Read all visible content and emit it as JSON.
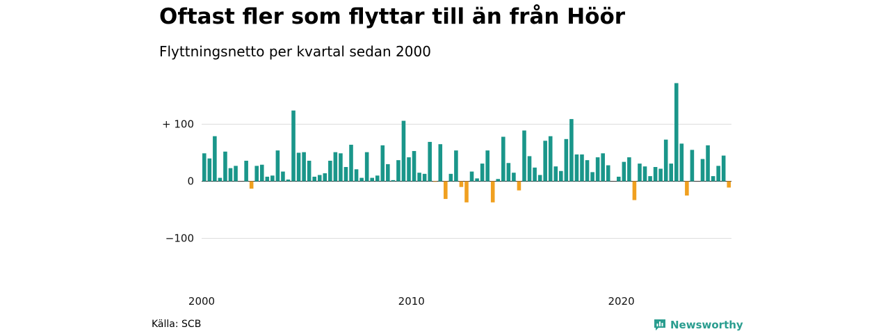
{
  "title": "Oftast fler som flyttar till än från Höör",
  "subtitle": "Flyttningsnetto per kvartal sedan 2000",
  "source": "Källa: SCB",
  "brand": {
    "name": "Newsworthy",
    "logo_icon": "newsworthy-logo-icon"
  },
  "colors": {
    "positive": "#1a968a",
    "negative": "#f0a020",
    "grid": "#dddddd",
    "brand": "#2a9d8f"
  },
  "chart_data": {
    "type": "bar",
    "ylim": [
      -140,
      170
    ],
    "y_ticks": [
      {
        "value": 100,
        "label": "+ 100"
      },
      {
        "value": 0,
        "label": "0"
      },
      {
        "value": -100,
        "label": "−100"
      }
    ],
    "x_ticks": [
      "2000",
      "2010",
      "2020"
    ],
    "grid": true,
    "first_quarter": "2000 Q1",
    "values": [
      49,
      40,
      79,
      6,
      52,
      23,
      27,
      0,
      36,
      -13,
      27,
      29,
      8,
      10,
      54,
      17,
      3,
      124,
      50,
      51,
      36,
      8,
      11,
      14,
      36,
      51,
      49,
      25,
      64,
      21,
      6,
      51,
      6,
      10,
      63,
      30,
      2,
      37,
      106,
      42,
      53,
      15,
      13,
      69,
      -1,
      65,
      -31,
      13,
      54,
      -10,
      -37,
      17,
      5,
      31,
      54,
      -37,
      4,
      78,
      32,
      15,
      -16,
      89,
      44,
      24,
      11,
      71,
      79,
      26,
      18,
      74,
      109,
      47,
      47,
      37,
      16,
      42,
      49,
      28,
      0,
      8,
      34,
      42,
      -33,
      31,
      26,
      9,
      25,
      22,
      73,
      31,
      172,
      66,
      -25,
      55,
      0,
      39,
      63,
      9,
      27,
      45,
      -11
    ]
  }
}
